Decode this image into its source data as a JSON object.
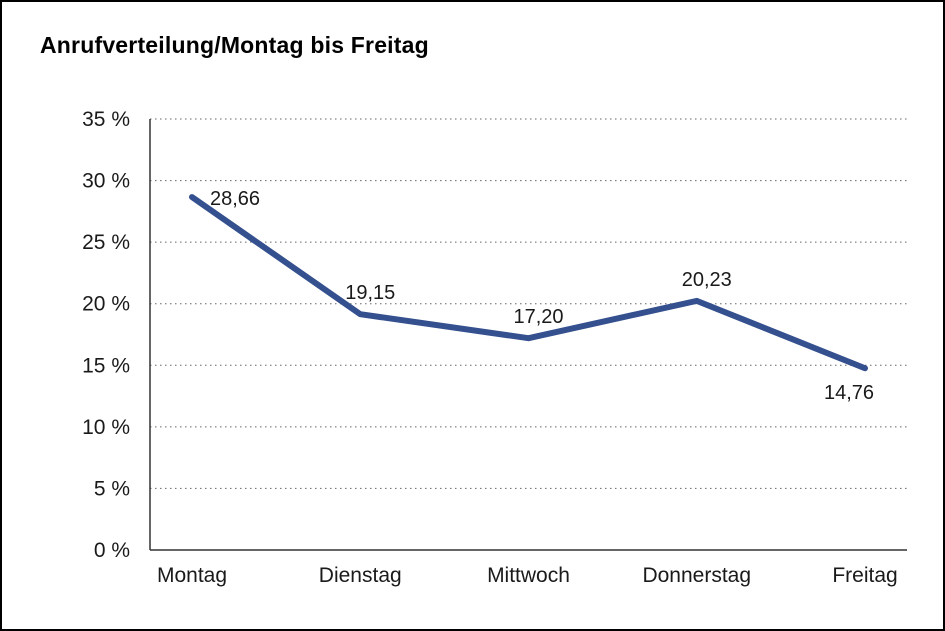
{
  "page": {
    "title": "Anrufverteilung/Montag bis Freitag"
  },
  "chart_data": {
    "type": "line",
    "title": "Anrufverteilung/Montag bis Freitag",
    "categories": [
      "Montag",
      "Dienstag",
      "Mittwoch",
      "Donnerstag",
      "Freitag"
    ],
    "values": [
      28.66,
      19.15,
      17.2,
      20.23,
      14.76
    ],
    "data_labels": [
      "28,66",
      "19,15",
      "17,20",
      "20,23",
      "14,76"
    ],
    "data_label_positions": [
      "right",
      "above",
      "above",
      "above",
      "below"
    ],
    "ylabel_suffix": " %",
    "ylim": [
      0,
      35
    ],
    "ytick_step": 5,
    "grid": "dotted-horizontal",
    "legend": "none",
    "colors": {
      "line": "#35508F",
      "axis": "#333333",
      "gridline": "#666666",
      "text": "#1a1a1a"
    }
  }
}
